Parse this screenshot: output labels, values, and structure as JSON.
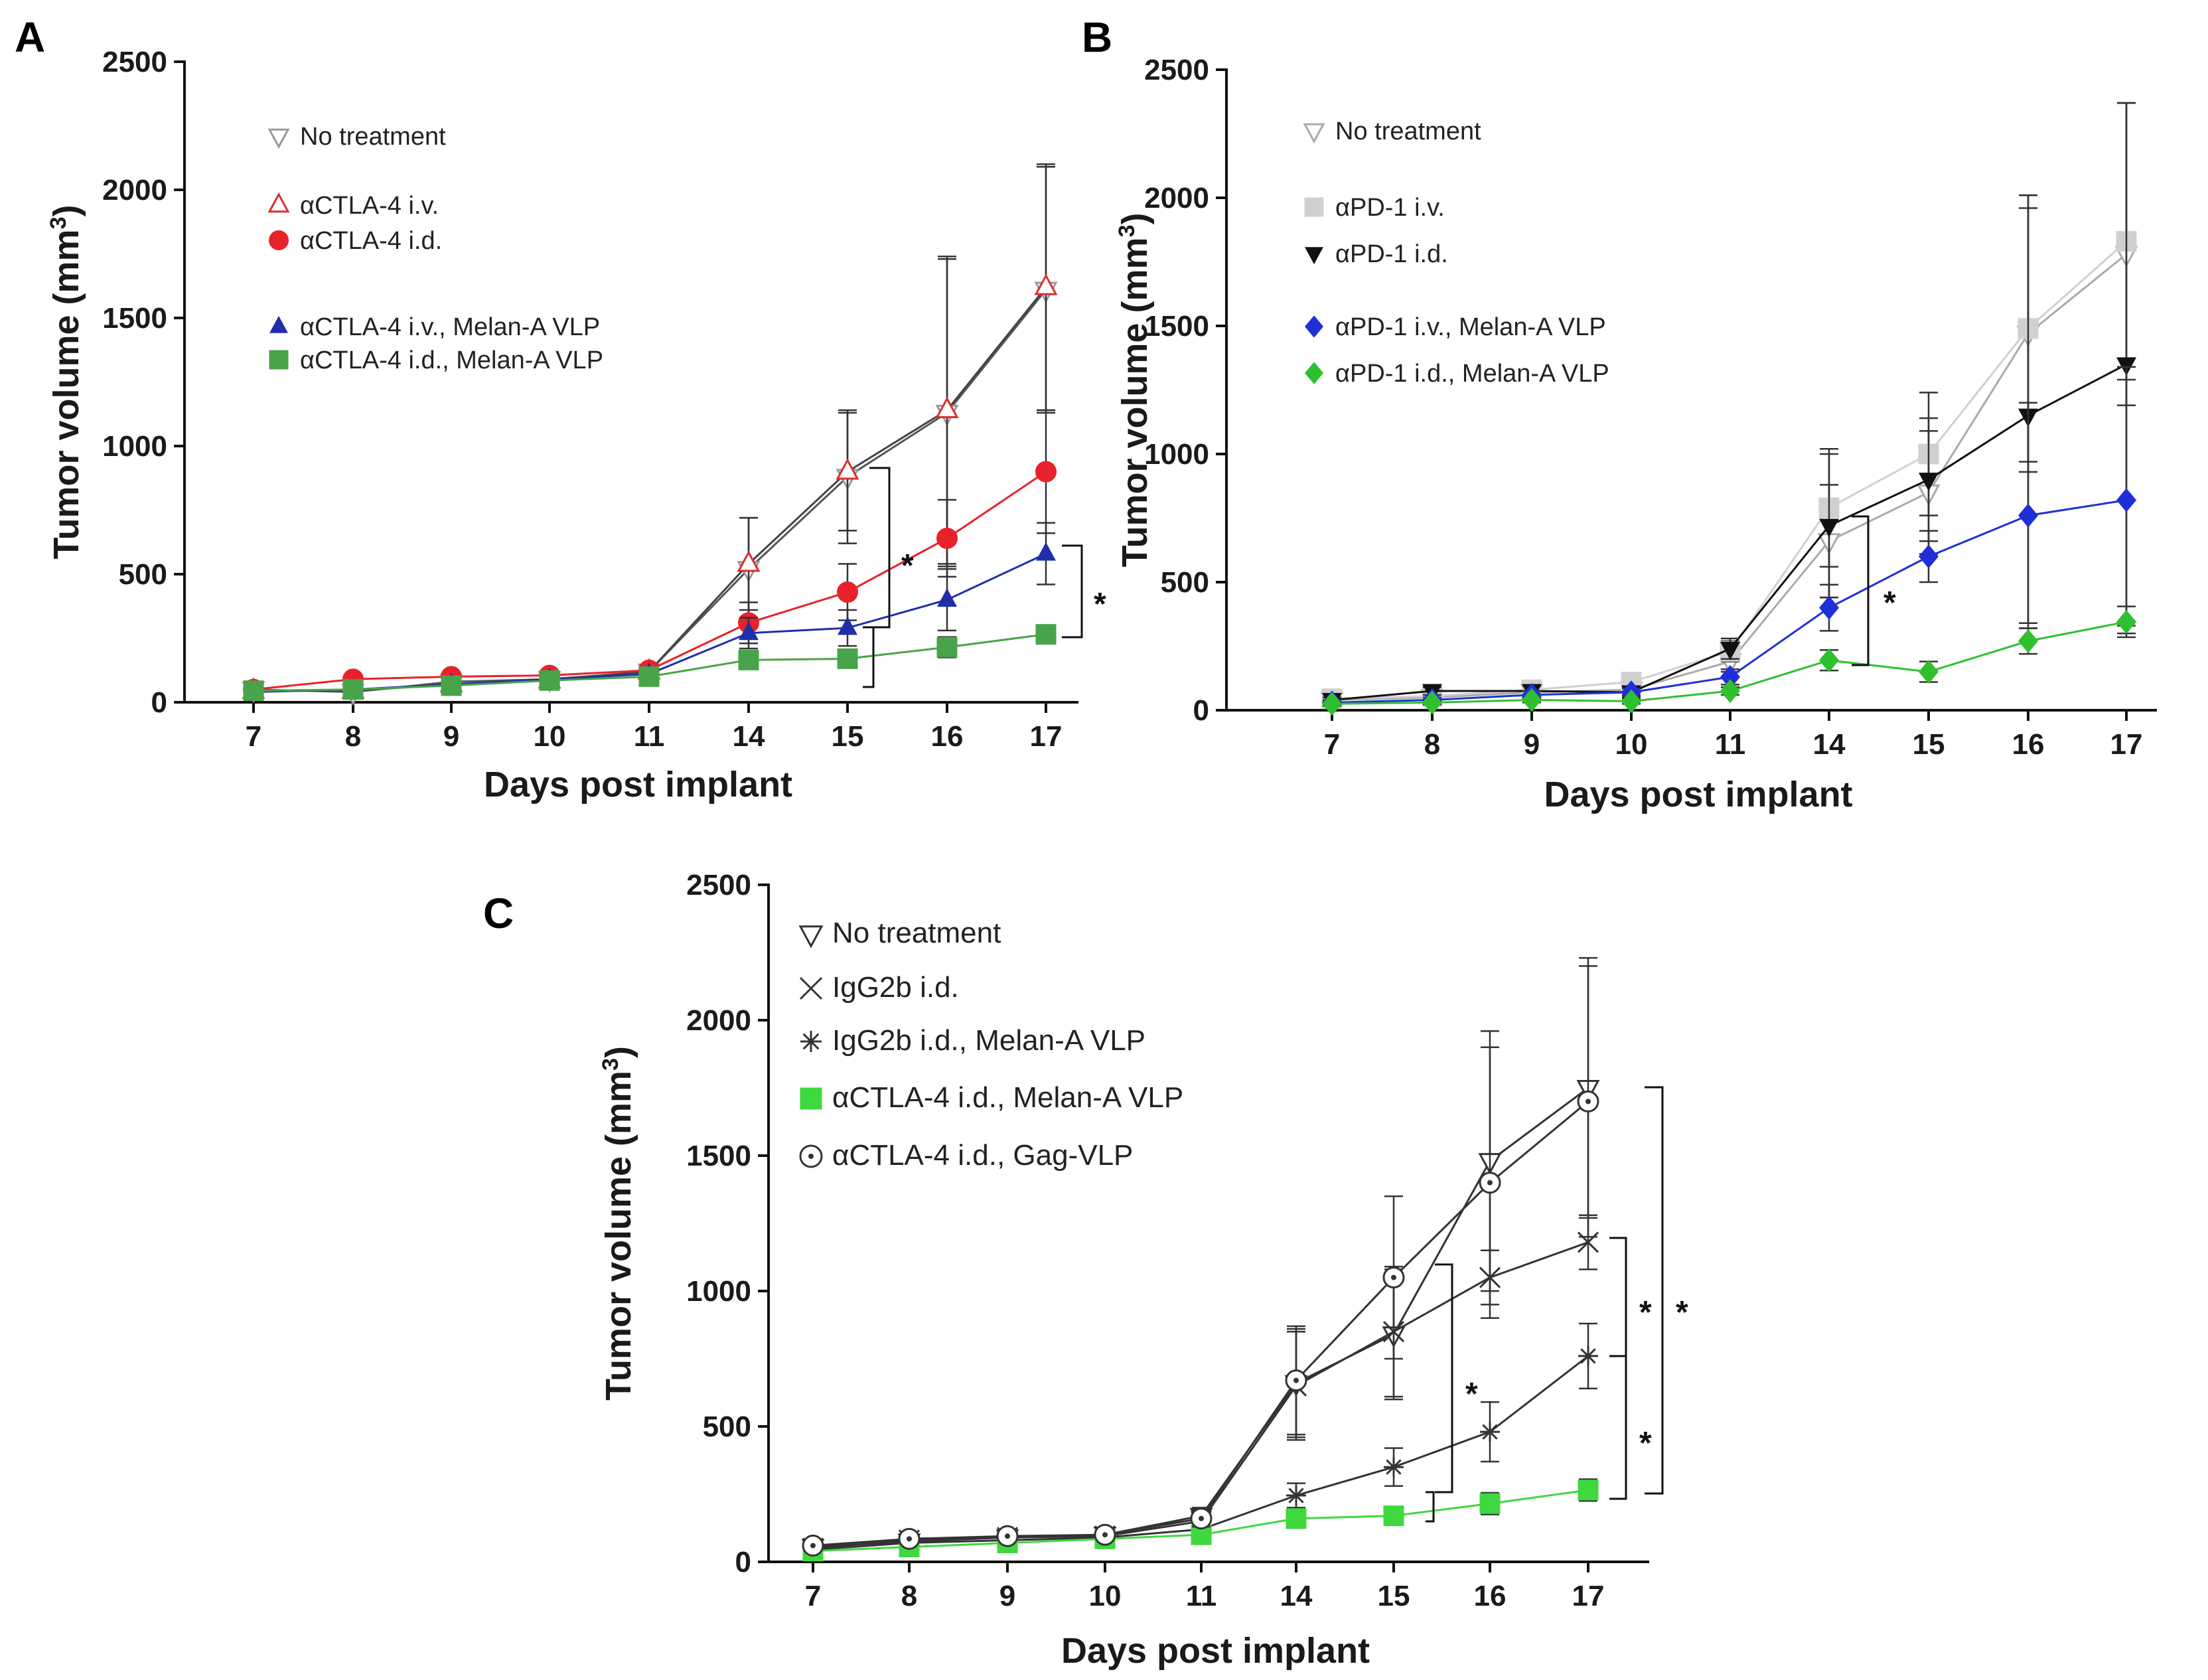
{
  "chart_data": [
    {
      "panel": "A",
      "type": "line",
      "xlabel": "Days post implant",
      "ylabel": "Tumor volume (mm3)",
      "ylim": [
        0,
        2500
      ],
      "yticks": [
        0,
        500,
        1000,
        1500,
        2000,
        2500
      ],
      "categories": [
        "7",
        "8",
        "9",
        "10",
        "11",
        "14",
        "15",
        "16",
        "17"
      ],
      "legend_position": "top-left",
      "series": [
        {
          "name": "No treatment",
          "marker": "triangle-down-open",
          "color": "#9a9a9a",
          "values": [
            50,
            40,
            80,
            90,
            120,
            520,
            880,
            1130,
            1610
          ],
          "err": [
            15,
            15,
            20,
            20,
            25,
            200,
            260,
            600,
            480
          ]
        },
        {
          "name": "αCTLA-4 i.v.",
          "marker": "triangle-up-open",
          "color": "#d93030",
          "line": "#444444",
          "values": [
            45,
            45,
            70,
            85,
            120,
            540,
            900,
            1140,
            1620
          ],
          "err": [
            15,
            15,
            20,
            20,
            25,
            180,
            230,
            600,
            480
          ]
        },
        {
          "name": "αCTLA-4 i.d.",
          "marker": "circle-filled",
          "color": "#e8222b",
          "values": [
            50,
            90,
            100,
            105,
            125,
            310,
            430,
            640,
            900
          ],
          "err": [
            12,
            15,
            15,
            15,
            20,
            80,
            110,
            150,
            240
          ]
        },
        {
          "name": "αCTLA-4 i.v., Melan-A VLP",
          "marker": "triangle-up-filled",
          "color": "#1f2fa8",
          "values": [
            40,
            50,
            70,
            90,
            110,
            270,
            290,
            400,
            580
          ],
          "err": [
            10,
            12,
            15,
            15,
            20,
            60,
            70,
            120,
            120
          ]
        },
        {
          "name": "αCTLA-4 i.d., Melan-A VLP",
          "marker": "square-filled",
          "color": "#49a34a",
          "values": [
            45,
            50,
            65,
            85,
            100,
            165,
            170,
            215,
            265
          ],
          "err": [
            10,
            10,
            12,
            12,
            15,
            30,
            30,
            40,
            30
          ]
        }
      ],
      "annotations": [
        "*",
        "*"
      ]
    },
    {
      "panel": "B",
      "type": "line",
      "xlabel": "Days post implant",
      "ylabel": "Tumor volume (mm3)",
      "ylim": [
        0,
        2500
      ],
      "yticks": [
        0,
        500,
        1000,
        1500,
        2000,
        2500
      ],
      "categories": [
        "7",
        "8",
        "9",
        "10",
        "11",
        "14",
        "15",
        "16",
        "17"
      ],
      "legend_position": "top-left",
      "series": [
        {
          "name": "No treatment",
          "marker": "triangle-down-open",
          "color": "#aaaaaa",
          "values": [
            40,
            50,
            70,
            80,
            190,
            660,
            850,
            1470,
            1780
          ],
          "err": [
            10,
            15,
            20,
            20,
            40,
            220,
            240,
            540,
            590
          ]
        },
        {
          "name": "αPD-1 i.v.",
          "marker": "square-filled",
          "color": "#d0d0d0",
          "values": [
            45,
            55,
            80,
            110,
            230,
            790,
            1000,
            1490,
            1830
          ],
          "err": [
            10,
            15,
            20,
            25,
            40,
            230,
            240,
            520,
            540
          ]
        },
        {
          "name": "αPD-1 i.d.",
          "marker": "triangle-down-filled",
          "color": "#111111",
          "values": [
            40,
            75,
            75,
            70,
            240,
            720,
            900,
            1150,
            1350
          ],
          "err": [
            10,
            15,
            20,
            20,
            40,
            280,
            240,
            810,
            1020
          ]
        },
        {
          "name": "αPD-1 i.v., Melan-A VLP",
          "marker": "diamond-filled",
          "color": "#1f2fd6",
          "values": [
            30,
            40,
            60,
            70,
            130,
            400,
            600,
            760,
            820
          ],
          "err": [
            10,
            10,
            15,
            15,
            30,
            90,
            100,
            440,
            520
          ]
        },
        {
          "name": "αPD-1 i.d., Melan-A VLP",
          "marker": "diamond-filled",
          "color": "#2ec02e",
          "values": [
            25,
            30,
            40,
            35,
            75,
            195,
            150,
            270,
            345
          ],
          "err": [
            8,
            8,
            10,
            10,
            15,
            40,
            40,
            50,
            60
          ]
        }
      ],
      "annotations": [
        "*"
      ]
    },
    {
      "panel": "C",
      "type": "line",
      "xlabel": "Days post implant",
      "ylabel": "Tumor volume (mm3)",
      "ylim": [
        0,
        2500
      ],
      "yticks": [
        0,
        500,
        1000,
        1500,
        2000,
        2500
      ],
      "categories": [
        "7",
        "8",
        "9",
        "10",
        "11",
        "14",
        "15",
        "16",
        "17"
      ],
      "legend_position": "top-left",
      "series": [
        {
          "name": "No treatment",
          "marker": "triangle-down-open",
          "color": "#333333",
          "values": [
            55,
            75,
            90,
            100,
            170,
            660,
            840,
            1480,
            1750
          ],
          "err": [
            10,
            15,
            15,
            15,
            30,
            200,
            240,
            480,
            480
          ]
        },
        {
          "name": "IgG2b i.d.",
          "marker": "x",
          "color": "#333333",
          "values": [
            50,
            80,
            90,
            95,
            150,
            650,
            850,
            1050,
            1180
          ],
          "err": [
            10,
            15,
            15,
            15,
            30,
            200,
            240,
            100,
            100
          ]
        },
        {
          "name": "IgG2b i.d., Melan-A VLP",
          "marker": "asterisk",
          "color": "#333333",
          "values": [
            45,
            70,
            80,
            90,
            120,
            245,
            350,
            480,
            760
          ],
          "err": [
            10,
            12,
            12,
            12,
            20,
            45,
            70,
            110,
            120
          ]
        },
        {
          "name": "αCTLA-4 i.d., Melan-A VLP",
          "marker": "square-filled",
          "color": "#3fd83f",
          "values": [
            40,
            55,
            70,
            85,
            100,
            160,
            170,
            215,
            265
          ],
          "err": [
            8,
            10,
            10,
            12,
            15,
            35,
            30,
            40,
            40
          ]
        },
        {
          "name": "αCTLA-4 i.d., Gag-VLP",
          "marker": "circle-dot",
          "color": "#333333",
          "values": [
            60,
            85,
            95,
            100,
            160,
            670,
            1050,
            1400,
            1700
          ],
          "err": [
            10,
            15,
            15,
            15,
            30,
            200,
            300,
            500,
            500
          ]
        }
      ],
      "annotations": [
        "*",
        "*",
        "*",
        "*"
      ]
    }
  ]
}
